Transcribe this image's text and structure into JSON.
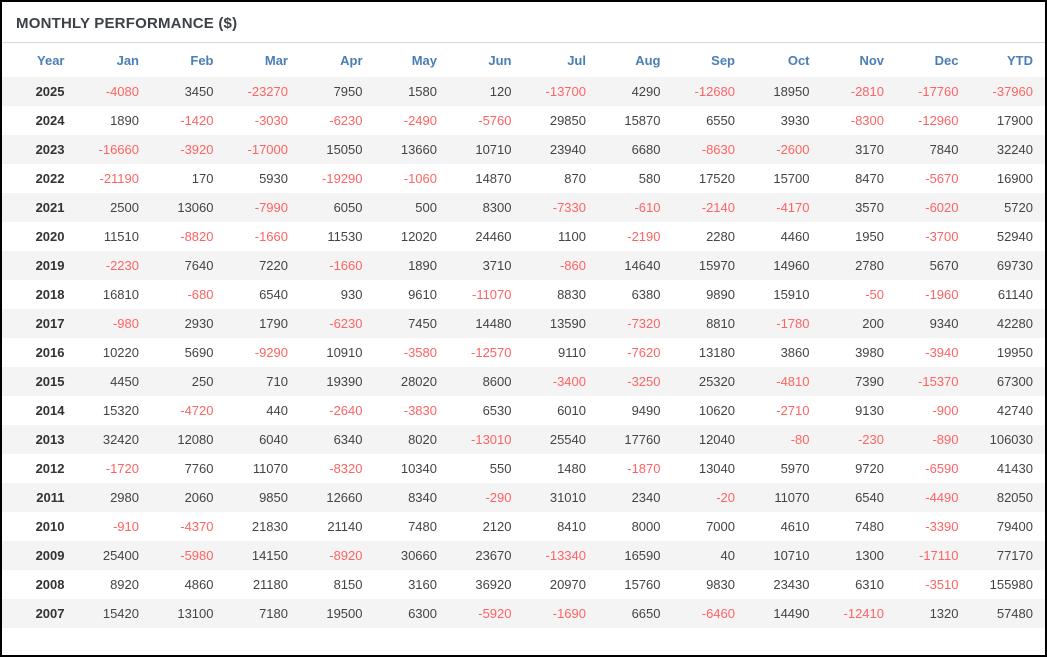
{
  "panel": {
    "title": "MONTHLY PERFORMANCE ($)"
  },
  "colors": {
    "header_text": "#4a7eb5",
    "title_text": "#3d4147",
    "negative_value": "#ff6363",
    "positive_value": "#444444",
    "row_stripe": "#f4f4f4",
    "divider": "#d9d9d9",
    "outer_border": "#000000"
  },
  "chart_data": {
    "type": "table",
    "title": "MONTHLY PERFORMANCE ($)",
    "columns": [
      "Year",
      "Jan",
      "Feb",
      "Mar",
      "Apr",
      "May",
      "Jun",
      "Jul",
      "Aug",
      "Sep",
      "Oct",
      "Nov",
      "Dec",
      "YTD"
    ],
    "rows": [
      {
        "year": "2025",
        "values": [
          -4080,
          3450,
          -23270,
          7950,
          1580,
          120,
          -13700,
          4290,
          -12680,
          18950,
          -2810,
          -17760,
          -37960
        ]
      },
      {
        "year": "2024",
        "values": [
          1890,
          -1420,
          -3030,
          -6230,
          -2490,
          -5760,
          29850,
          15870,
          6550,
          3930,
          -8300,
          -12960,
          17900
        ]
      },
      {
        "year": "2023",
        "values": [
          -16660,
          -3920,
          -17000,
          15050,
          13660,
          10710,
          23940,
          6680,
          -8630,
          -2600,
          3170,
          7840,
          32240
        ]
      },
      {
        "year": "2022",
        "values": [
          -21190,
          170,
          5930,
          -19290,
          -1060,
          14870,
          870,
          580,
          17520,
          15700,
          8470,
          -5670,
          16900
        ]
      },
      {
        "year": "2021",
        "values": [
          2500,
          13060,
          -7990,
          6050,
          500,
          8300,
          -7330,
          -610,
          -2140,
          -4170,
          3570,
          -6020,
          5720
        ]
      },
      {
        "year": "2020",
        "values": [
          11510,
          -8820,
          -1660,
          11530,
          12020,
          24460,
          1100,
          -2190,
          2280,
          4460,
          1950,
          -3700,
          52940
        ]
      },
      {
        "year": "2019",
        "values": [
          -2230,
          7640,
          7220,
          -1660,
          1890,
          3710,
          -860,
          14640,
          15970,
          14960,
          2780,
          5670,
          69730
        ]
      },
      {
        "year": "2018",
        "values": [
          16810,
          -680,
          6540,
          930,
          9610,
          -11070,
          8830,
          6380,
          9890,
          15910,
          -50,
          -1960,
          61140
        ]
      },
      {
        "year": "2017",
        "values": [
          -980,
          2930,
          1790,
          -6230,
          7450,
          14480,
          13590,
          -7320,
          8810,
          -1780,
          200,
          9340,
          42280
        ]
      },
      {
        "year": "2016",
        "values": [
          10220,
          5690,
          -9290,
          10910,
          -3580,
          -12570,
          9110,
          -7620,
          13180,
          3860,
          3980,
          -3940,
          19950
        ]
      },
      {
        "year": "2015",
        "values": [
          4450,
          250,
          710,
          19390,
          28020,
          8600,
          -3400,
          -3250,
          25320,
          -4810,
          7390,
          -15370,
          67300
        ]
      },
      {
        "year": "2014",
        "values": [
          15320,
          -4720,
          440,
          -2640,
          -3830,
          6530,
          6010,
          9490,
          10620,
          -2710,
          9130,
          -900,
          42740
        ]
      },
      {
        "year": "2013",
        "values": [
          32420,
          12080,
          6040,
          6340,
          8020,
          -13010,
          25540,
          17760,
          12040,
          -80,
          -230,
          -890,
          106030
        ]
      },
      {
        "year": "2012",
        "values": [
          -1720,
          7760,
          11070,
          -8320,
          10340,
          550,
          1480,
          -1870,
          13040,
          5970,
          9720,
          -6590,
          41430
        ]
      },
      {
        "year": "2011",
        "values": [
          2980,
          2060,
          9850,
          12660,
          8340,
          -290,
          31010,
          2340,
          -20,
          11070,
          6540,
          -4490,
          82050
        ]
      },
      {
        "year": "2010",
        "values": [
          -910,
          -4370,
          21830,
          21140,
          7480,
          2120,
          8410,
          8000,
          7000,
          4610,
          7480,
          -3390,
          79400
        ]
      },
      {
        "year": "2009",
        "values": [
          25400,
          -5980,
          14150,
          -8920,
          30660,
          23670,
          -13340,
          16590,
          40,
          10710,
          1300,
          -17110,
          77170
        ]
      },
      {
        "year": "2008",
        "values": [
          8920,
          4860,
          21180,
          8150,
          3160,
          36920,
          20970,
          15760,
          9830,
          23430,
          6310,
          -3510,
          155980
        ]
      },
      {
        "year": "2007",
        "values": [
          15420,
          13100,
          7180,
          19500,
          6300,
          -5920,
          -1690,
          6650,
          -6460,
          14490,
          -12410,
          1320,
          57480
        ]
      }
    ]
  }
}
